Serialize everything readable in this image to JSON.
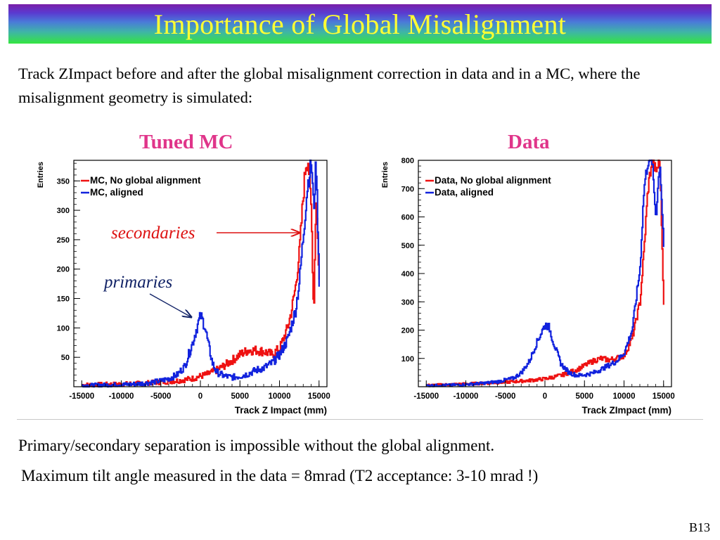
{
  "title": "Importance of Global Misalignment",
  "intro": "Track ZImpact before and after the global misalignment  correction in data and in a MC, where the misalignment geometry is simulated:",
  "panels": {
    "left_title": "Tuned MC",
    "right_title": "Data"
  },
  "annotations": {
    "secondaries": "secondaries",
    "primaries": "primaries"
  },
  "conclusion_1": "Primary/secondary separation is impossible without the global alignment.",
  "conclusion_2": "Maximum tilt angle measured in the data = 8mrad (T2 acceptance: 3-10 mrad !)",
  "slide_number": "B13",
  "colors": {
    "no_alignment": "#ee1111",
    "aligned": "#1122dd",
    "panel_title": "#e0358a",
    "secondaries_label": "#dd1111",
    "primaries_label": "#112266"
  },
  "chart_data": [
    {
      "type": "line",
      "xlabel": "Track Z Impact (mm)",
      "ylabel": "Entries",
      "xlim": [
        -16000,
        16000
      ],
      "ylim": [
        0,
        385
      ],
      "xticks": [
        -15000,
        -10000,
        -5000,
        0,
        5000,
        10000,
        15000
      ],
      "yticks": [
        50,
        100,
        150,
        200,
        250,
        300,
        350
      ],
      "legend_position": "top-left",
      "series": [
        {
          "name": "MC, No global alignment",
          "color": "#ee1111",
          "x": [
            -15000,
            -12000,
            -9000,
            -7000,
            -5000,
            -3000,
            -1000,
            0,
            1000,
            2000,
            3000,
            4000,
            5000,
            6000,
            7000,
            8000,
            9000,
            10000,
            11000,
            11500,
            12000,
            12500,
            13000,
            13300,
            13600,
            14000,
            14300,
            14600,
            15000
          ],
          "y": [
            3,
            4,
            5,
            6,
            8,
            10,
            14,
            18,
            22,
            28,
            36,
            45,
            55,
            62,
            62,
            60,
            55,
            65,
            100,
            130,
            170,
            230,
            330,
            380,
            385,
            300,
            120,
            330,
            180
          ]
        },
        {
          "name": "MC, aligned",
          "color": "#1122dd",
          "x": [
            -15000,
            -12000,
            -9000,
            -7000,
            -5000,
            -4000,
            -3000,
            -2000,
            -1000,
            -500,
            0,
            500,
            1000,
            1500,
            2000,
            3000,
            4000,
            5000,
            6000,
            7000,
            8000,
            9000,
            10000,
            11000,
            12000,
            12500,
            13000,
            13500,
            14000,
            14300,
            14600,
            15000
          ],
          "y": [
            2,
            3,
            4,
            6,
            10,
            14,
            20,
            35,
            75,
            100,
            120,
            105,
            70,
            40,
            25,
            18,
            16,
            18,
            22,
            28,
            32,
            40,
            55,
            80,
            130,
            180,
            260,
            340,
            385,
            300,
            385,
            180
          ]
        }
      ]
    },
    {
      "type": "line",
      "xlabel": "Track ZImpact (mm)",
      "ylabel": "Entries",
      "xlim": [
        -16000,
        16000
      ],
      "ylim": [
        0,
        800
      ],
      "xticks": [
        -15000,
        -10000,
        -5000,
        0,
        5000,
        10000,
        15000
      ],
      "yticks": [
        100,
        200,
        300,
        400,
        500,
        600,
        700,
        800
      ],
      "legend_position": "top-left",
      "series": [
        {
          "name": "Data, No global alignment",
          "color": "#ee1111",
          "x": [
            -15000,
            -12000,
            -10000,
            -8000,
            -6000,
            -4000,
            -2000,
            0,
            2000,
            4000,
            5000,
            6000,
            7000,
            8000,
            9000,
            10000,
            11000,
            12000,
            12500,
            13000,
            13500,
            14000,
            14500,
            15000
          ],
          "y": [
            5,
            8,
            10,
            12,
            15,
            18,
            22,
            28,
            40,
            60,
            75,
            90,
            100,
            95,
            100,
            110,
            170,
            300,
            480,
            700,
            800,
            760,
            800,
            300
          ]
        },
        {
          "name": "Data, aligned",
          "color": "#1122dd",
          "x": [
            -15000,
            -12000,
            -10000,
            -8000,
            -6000,
            -4000,
            -3000,
            -2000,
            -1000,
            0,
            500,
            1000,
            2000,
            3000,
            4000,
            5000,
            6000,
            7000,
            8000,
            9000,
            10000,
            11000,
            12000,
            12500,
            13000,
            13500,
            14000,
            14500,
            15000
          ],
          "y": [
            4,
            6,
            8,
            12,
            18,
            30,
            50,
            90,
            160,
            220,
            210,
            160,
            80,
            50,
            40,
            42,
            48,
            60,
            75,
            90,
            120,
            200,
            420,
            700,
            800,
            800,
            600,
            800,
            500
          ]
        }
      ]
    }
  ]
}
